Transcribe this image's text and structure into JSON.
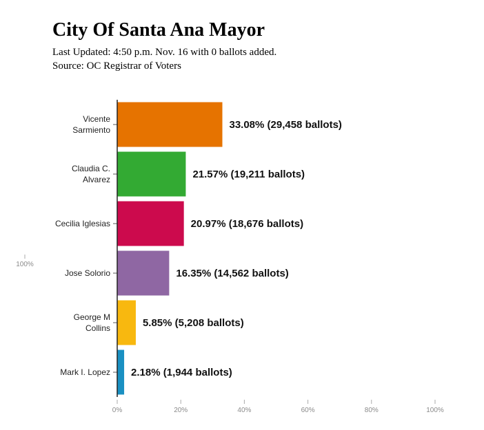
{
  "title": "City Of Santa Ana Mayor",
  "updated": "Last Updated: 4:50 p.m. Nov. 16 with 0 ballots added.",
  "source": "Source: OC Registrar of Voters",
  "chart_data": {
    "type": "bar",
    "orientation": "horizontal",
    "title": "City Of Santa Ana Mayor",
    "xlabel": "",
    "ylabel": "",
    "xlim": [
      0,
      100
    ],
    "grid": false,
    "categories": [
      [
        "Vicente",
        "Sarmiento"
      ],
      [
        "Claudia C.",
        "Alvarez"
      ],
      [
        "Cecilia Iglesias"
      ],
      [
        "Jose Solorio"
      ],
      [
        "George M",
        "Collins"
      ],
      [
        "Mark I. Lopez"
      ]
    ],
    "values": [
      33.08,
      21.57,
      20.97,
      16.35,
      5.85,
      2.18
    ],
    "ballots": [
      29458,
      19211,
      18676,
      14562,
      5208,
      1944
    ],
    "data_labels": [
      "33.08% (29,458 ballots)",
      "21.57% (19,211 ballots)",
      "20.97% (18,676 ballots)",
      "16.35% (14,562 ballots)",
      "5.85% (5,208 ballots)",
      "2.18% (1,944 ballots)"
    ],
    "colors": [
      "#e67300",
      "#33aa33",
      "#cc0a4d",
      "#8f67a3",
      "#f8b80f",
      "#1a90c2"
    ],
    "x_ticks": [
      "0%",
      "20%",
      "40%",
      "60%",
      "80%",
      "100%"
    ],
    "x_tick_values": [
      0,
      20,
      40,
      60,
      80,
      100
    ],
    "stray_tick_label": "100%"
  }
}
